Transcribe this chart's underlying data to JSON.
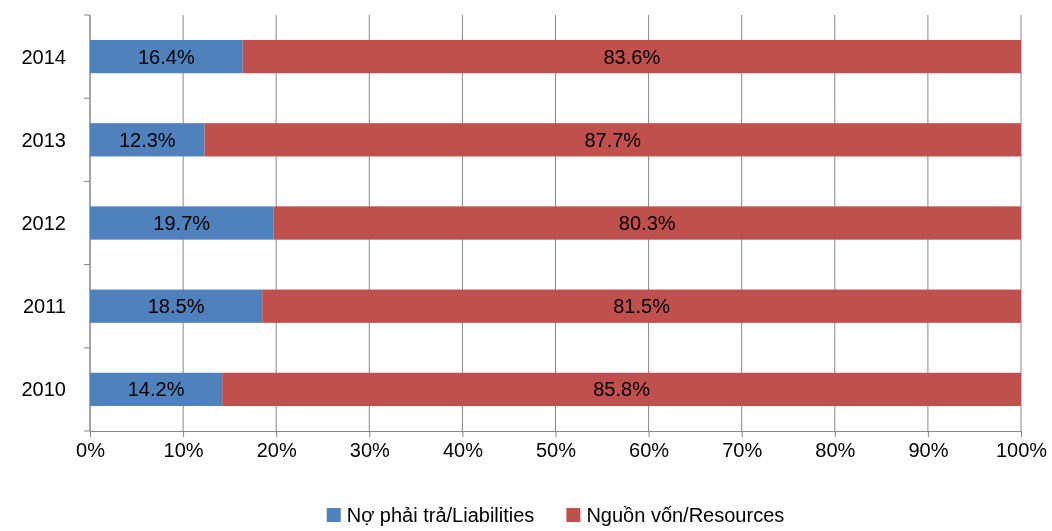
{
  "chart_data": {
    "type": "bar",
    "orientation": "horizontal",
    "stacked": true,
    "categories": [
      "2014",
      "2013",
      "2012",
      "2011",
      "2010"
    ],
    "series": [
      {
        "name": "Nợ phải trả/Liabilities",
        "color": "#4f81bd",
        "values": [
          16.4,
          12.3,
          19.7,
          18.5,
          14.2
        ],
        "value_labels": [
          "16.4%",
          "12.3%",
          "19.7%",
          "18.5%",
          "14.2%"
        ]
      },
      {
        "name": "Nguồn vốn/Resources",
        "color": "#c0504d",
        "values": [
          83.6,
          87.7,
          80.3,
          81.5,
          85.8
        ],
        "value_labels": [
          "83.6%",
          "87.7%",
          "80.3%",
          "81.5%",
          "85.8%"
        ]
      }
    ],
    "xlim": [
      0,
      100
    ],
    "xticks": [
      {
        "value": 0,
        "label": "0%"
      },
      {
        "value": 10,
        "label": "10%"
      },
      {
        "value": 20,
        "label": "20%"
      },
      {
        "value": 30,
        "label": "30%"
      },
      {
        "value": 40,
        "label": "40%"
      },
      {
        "value": 50,
        "label": "50%"
      },
      {
        "value": 60,
        "label": "60%"
      },
      {
        "value": 70,
        "label": "70%"
      },
      {
        "value": 80,
        "label": "80%"
      },
      {
        "value": 90,
        "label": "90%"
      },
      {
        "value": 100,
        "label": "100%"
      }
    ],
    "grid": "x",
    "legend": "bottom"
  }
}
